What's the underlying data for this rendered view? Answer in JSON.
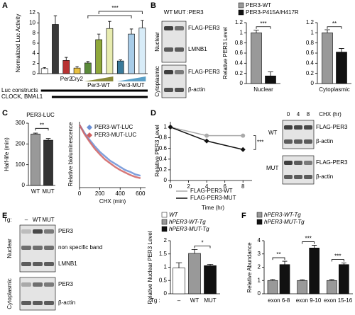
{
  "figure": {
    "panel_labels": [
      "A",
      "B",
      "C",
      "D",
      "E",
      "F"
    ],
    "blot_b": {
      "lanes": [
        "WT",
        "MUT",
        ":PER3"
      ],
      "fractions": [
        "Nuclear",
        "Cytoplasmic"
      ],
      "rows": [
        "FLAG-PER3",
        "LMNB1",
        "FLAG-PER3",
        "β-actin"
      ]
    },
    "blot_d": {
      "header": "CHX (hr)",
      "lanes": [
        "0",
        "4",
        "8"
      ],
      "groups": [
        "WT",
        "MUT"
      ],
      "rows": [
        "FLAG-PER3",
        "β-actin",
        "FLAG-PER3",
        "β-actin"
      ]
    },
    "blot_e": {
      "header": "Tg:",
      "lanes": [
        "–",
        "WT",
        "MUT"
      ],
      "fractions": [
        "Nuclear",
        "Cytoplasmic"
      ],
      "rows": [
        "PER3",
        "non specific band",
        "LMNB1",
        "PER3",
        "β-actin"
      ]
    }
  },
  "chart_data": [
    {
      "type": "bar",
      "ylabel": "Normalized Luc Activity",
      "categories": [
        null,
        null,
        "Per2",
        "Cry2",
        null,
        null,
        null,
        null,
        null,
        null
      ],
      "values": [
        1.0,
        9.7,
        2.6,
        1.1,
        2.1,
        6.7,
        8.9,
        2.5,
        7.8,
        9.0
      ],
      "errors": [
        0.2,
        1.7,
        0.6,
        0.3,
        0.3,
        1.1,
        1.4,
        0.2,
        1.0,
        1.5
      ],
      "colors": [
        "#ffffff",
        "#3a3a3a",
        "#b83232",
        "#e8c040",
        "#5a8a3a",
        "#8fa83a",
        "#e8ecb0",
        "#3a7a9a",
        "#a8cce8",
        "#d8ecf8"
      ],
      "ylim": [
        0,
        12
      ],
      "yticks": [
        0,
        2,
        4,
        6,
        8,
        10,
        12
      ],
      "annotations": [
        "***",
        "Per3-WT",
        "Per3-MUT",
        "Luc constructs",
        "CLOCK, BMAL1"
      ]
    },
    {
      "type": "bar",
      "ylabel": "Relative PER3 Level",
      "categories": [
        "Nuclear",
        "Cytoplasmic"
      ],
      "series": [
        {
          "name": "PER3-WT",
          "color": "#999999",
          "values": [
            1.0,
            1.0
          ],
          "errors": [
            0.05,
            0.06
          ]
        },
        {
          "name": "PER3-P415A/H417R",
          "color": "#111111",
          "values": [
            0.15,
            0.62
          ],
          "errors": [
            0.08,
            0.07
          ]
        }
      ],
      "ylim": [
        0,
        1.2
      ],
      "yticks": [
        0,
        0.2,
        0.4,
        0.6,
        0.8,
        1,
        1.2
      ],
      "annotations": [
        "***",
        "**"
      ]
    },
    {
      "type": "bar",
      "title": "PER3-LUC",
      "ylabel": "Half-life (min)",
      "categories": [
        "WT",
        "MUT"
      ],
      "values": [
        248,
        218
      ],
      "errors": [
        4,
        8
      ],
      "colors": [
        "#999999",
        "#333333"
      ],
      "ylim": [
        0,
        300
      ],
      "yticks": [
        0,
        100,
        200,
        300
      ],
      "annotations": [
        "**"
      ]
    },
    {
      "type": "line",
      "ylabel": "Relative bioluminescence",
      "xlabel": "CHX (min)",
      "x": [
        0,
        50,
        100,
        150,
        200,
        250,
        300,
        350,
        400,
        450,
        500,
        550,
        600
      ],
      "series": [
        {
          "name": "PER3-WT-LUC",
          "color": "#6a8fd6",
          "values": [
            1,
            0.87,
            0.76,
            0.66,
            0.57,
            0.5,
            0.43,
            0.38,
            0.33,
            0.28,
            0.25,
            0.21,
            0.19
          ]
        },
        {
          "name": "PER3-MUT-LUC",
          "color": "#d06060",
          "values": [
            1,
            0.85,
            0.73,
            0.62,
            0.53,
            0.45,
            0.39,
            0.33,
            0.28,
            0.24,
            0.2,
            0.17,
            0.15
          ]
        }
      ],
      "xlim": [
        0,
        650
      ],
      "xticks": [
        0,
        200,
        400,
        600
      ],
      "ylim": [
        0,
        1.05
      ]
    },
    {
      "type": "line",
      "ylabel": "Relative PER3 Level",
      "xlabel": "Time (hr)",
      "x": [
        0,
        4,
        8
      ],
      "series": [
        {
          "name": "FLAG-PER3-WT",
          "color": "#aaaaaa",
          "values": [
            1,
            0.84,
            0.84
          ],
          "errors": [
            0,
            0.02,
            0.02
          ]
        },
        {
          "name": "FLAG-PER3-MUT",
          "color": "#111111",
          "values": [
            1,
            0.74,
            0.58
          ],
          "errors": [
            0,
            0.03,
            0.02
          ]
        }
      ],
      "xlim": [
        0,
        9
      ],
      "xticks": [
        0,
        2,
        4,
        6,
        8
      ],
      "ylim": [
        0,
        1.1
      ],
      "yticks": [
        0,
        0.2,
        0.4,
        0.6,
        0.8,
        1
      ],
      "annotations": [
        "***"
      ]
    },
    {
      "type": "bar",
      "ylabel": "Relative Nuclear PER3 Level",
      "xlabel": "Tg :",
      "categories": [
        "–",
        "WT",
        "MUT"
      ],
      "values": [
        0.97,
        1.52,
        1.06
      ],
      "errors": [
        0.2,
        0.15,
        0.05
      ],
      "colors": [
        "#ffffff",
        "#999999",
        "#111111"
      ],
      "legend": [
        "WT",
        "hPER3-WT-Tg",
        "hPER3-MUT-Tg"
      ],
      "ylim": [
        0,
        2
      ],
      "yticks": [
        0,
        0.5,
        1,
        1.5,
        2
      ],
      "annotations": [
        "*"
      ]
    },
    {
      "type": "bar",
      "ylabel": "Relative Abundance",
      "categories": [
        "exon 6-8",
        "exon 9-10",
        "exon 15-16"
      ],
      "series": [
        {
          "name": "hPER3-WT-Tg",
          "color": "#999999",
          "values": [
            1,
            1,
            1
          ],
          "errors": [
            0.08,
            0.06,
            0.07
          ]
        },
        {
          "name": "hPER3-MUT-Tg",
          "color": "#111111",
          "values": [
            2.2,
            3.45,
            2.2
          ],
          "errors": [
            0.25,
            0.2,
            0.12
          ]
        }
      ],
      "ylim": [
        0,
        4
      ],
      "yticks": [
        0,
        1,
        2,
        3,
        4
      ],
      "annotations": [
        "**",
        "***",
        "***"
      ]
    }
  ]
}
